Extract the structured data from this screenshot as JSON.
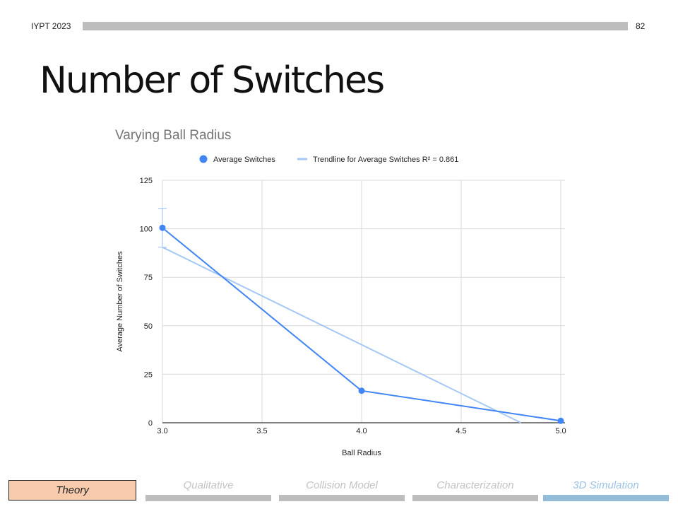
{
  "header": {
    "label": "IYPT 2023",
    "page_number": "82"
  },
  "slide": {
    "title": "Number of Switches"
  },
  "chart_data": {
    "type": "line",
    "title": "Varying Ball Radius",
    "xlabel": "Ball Radius",
    "ylabel": "Average Number of Switches",
    "xlim": [
      3.0,
      5.0
    ],
    "ylim": [
      0,
      125
    ],
    "x_ticks": [
      "3.0",
      "3.5",
      "4.0",
      "4.5",
      "5.0"
    ],
    "y_ticks": [
      "0",
      "25",
      "50",
      "75",
      "100",
      "125"
    ],
    "grid": true,
    "legend_position": "top",
    "series": [
      {
        "name": "Average Switches",
        "color": "#4285f4",
        "x": [
          3.0,
          4.0,
          5.0
        ],
        "y": [
          100.5,
          16.5,
          1
        ],
        "error_bars": [
          [
            90.5,
            110.5
          ],
          null,
          null
        ]
      },
      {
        "name": "Trendline for Average Switches R² = 0.861",
        "color": "#a6c8f4",
        "kind": "trendline",
        "x": [
          3.0,
          4.8
        ],
        "y": [
          90.5,
          0
        ]
      }
    ]
  },
  "nav": {
    "current": "Theory",
    "items": [
      "Qualitative",
      "Collision Model",
      "Characterization",
      "3D Simulation"
    ],
    "active_index": 3
  }
}
